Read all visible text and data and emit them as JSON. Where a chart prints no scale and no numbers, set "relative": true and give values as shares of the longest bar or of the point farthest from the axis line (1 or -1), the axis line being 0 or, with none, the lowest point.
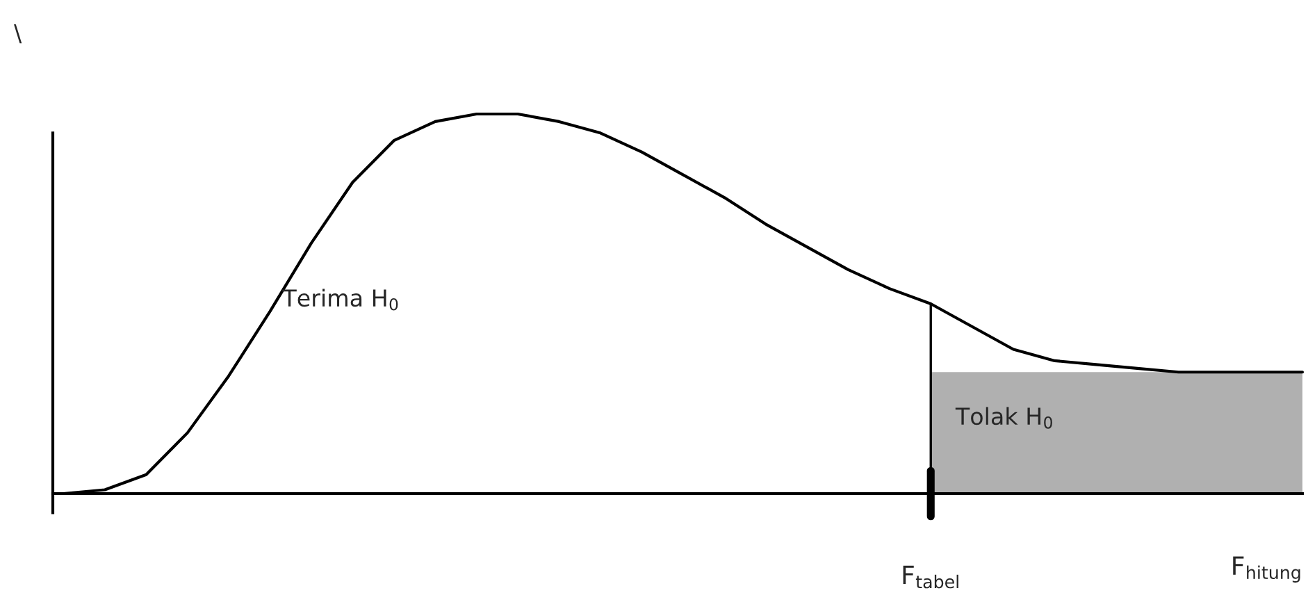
{
  "chart_data": {
    "type": "line",
    "relative": true,
    "color": "#000000",
    "categories": [
      null,
      null,
      null,
      null,
      null,
      null,
      null,
      null,
      null,
      null,
      null,
      null,
      null,
      null,
      null,
      null,
      null,
      null,
      null,
      null,
      null,
      null,
      null,
      null,
      null,
      null,
      null,
      null,
      null,
      null,
      null
    ],
    "values": [
      0,
      0.01,
      0.05,
      0.16,
      0.31,
      0.48,
      0.66,
      0.82,
      0.93,
      0.98,
      1.0,
      1.0,
      0.98,
      0.95,
      0.9,
      0.84,
      0.78,
      0.71,
      0.65,
      0.59,
      0.54,
      0.5,
      0.44,
      0.38,
      0.35,
      0.34,
      0.33,
      0.32,
      0.32,
      0.32,
      0.32
    ],
    "annotations": [
      "\\",
      "Terima H$_{0}$",
      "Tolak H$_{0}$",
      "F$_{tabel}$",
      "F$_{hitung}$"
    ],
    "grid": false,
    "legend": false
  }
}
